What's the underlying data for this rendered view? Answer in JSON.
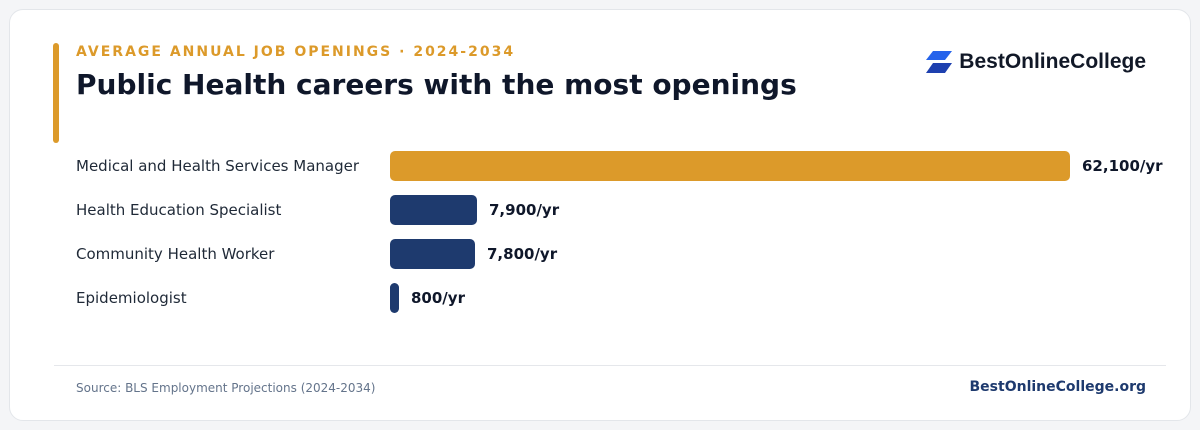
{
  "header": {
    "eyebrow": "AVERAGE ANNUAL JOB OPENINGS · 2024-2034",
    "title": "Public Health careers with the most openings"
  },
  "brand": {
    "icon": "stacked-parallelogram-logo-icon",
    "name": "BestOnlineCollege",
    "color": "#2563eb"
  },
  "colors": {
    "highlight": "#dc9a2a",
    "default": "#1e3a6e"
  },
  "chart_data": {
    "type": "bar",
    "orientation": "horizontal",
    "categories": [
      "Medical and Health Services Manager",
      "Health Education Specialist",
      "Community Health Worker",
      "Epidemiologist"
    ],
    "values": [
      62100,
      7900,
      7800,
      800
    ],
    "value_labels": [
      "62,100/yr",
      "7,900/yr",
      "7,800/yr",
      "800/yr"
    ],
    "highlight_index": 0
  },
  "footer": {
    "source": "Source: BLS Employment Projections (2024-2034)",
    "site": "BestOnlineCollege.org"
  }
}
